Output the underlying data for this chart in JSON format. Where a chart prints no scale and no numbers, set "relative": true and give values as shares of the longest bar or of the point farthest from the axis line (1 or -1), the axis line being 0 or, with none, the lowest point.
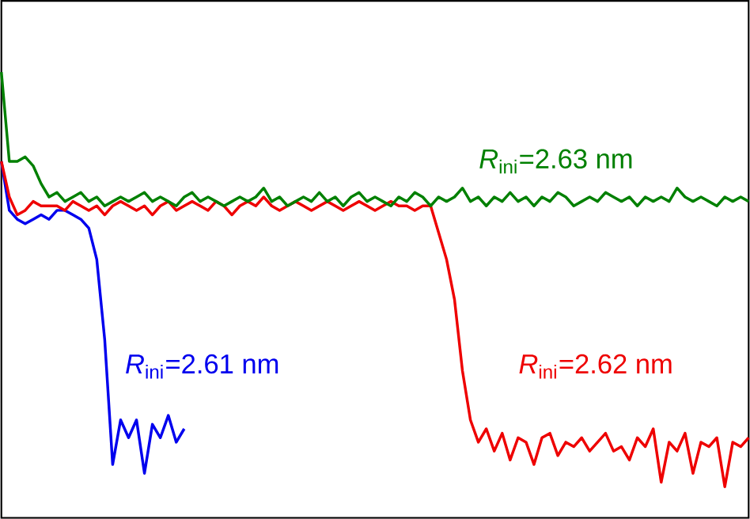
{
  "chart_data": {
    "type": "line",
    "relative": true,
    "categories": [
      null,
      null,
      null,
      null,
      null,
      null,
      null,
      null,
      null,
      null,
      null,
      null,
      null,
      null,
      null,
      null,
      null,
      null,
      null,
      null,
      null,
      null,
      null,
      null,
      null,
      null,
      null,
      null,
      null,
      null,
      null,
      null,
      null,
      null,
      null,
      null,
      null,
      null,
      null,
      null,
      null,
      null,
      null,
      null,
      null,
      null,
      null,
      null,
      null,
      null,
      null,
      null,
      null,
      null,
      null,
      null,
      null,
      null,
      null,
      null,
      null,
      null,
      null,
      null,
      null,
      null,
      null,
      null,
      null,
      null,
      null,
      null,
      null,
      null,
      null,
      null,
      null,
      null,
      null,
      null,
      null,
      null,
      null,
      null,
      null,
      null,
      null,
      null,
      null,
      null,
      null,
      null,
      null,
      null,
      null
    ],
    "series": [
      {
        "color": "#0000ee",
        "values": [
          0.8,
          0.69,
          0.67,
          0.66,
          0.67,
          0.68,
          0.67,
          0.69,
          0.69,
          0.68,
          0.67,
          0.65,
          0.58,
          0.4,
          0.12,
          0.22,
          0.18,
          0.22,
          0.1,
          0.21,
          0.18,
          0.23,
          0.17,
          0.2,
          null,
          null,
          null,
          null,
          null,
          null,
          null,
          null,
          null,
          null,
          null,
          null,
          null,
          null,
          null,
          null,
          null,
          null,
          null,
          null,
          null,
          null,
          null,
          null,
          null,
          null,
          null,
          null,
          null,
          null,
          null,
          null,
          null,
          null,
          null,
          null,
          null,
          null,
          null,
          null,
          null,
          null,
          null,
          null,
          null,
          null,
          null,
          null,
          null,
          null,
          null,
          null,
          null,
          null,
          null,
          null,
          null,
          null,
          null,
          null,
          null,
          null,
          null,
          null,
          null,
          null,
          null,
          null,
          null,
          null,
          null
        ]
      },
      {
        "color": "#ee0000",
        "values": [
          0.8,
          0.72,
          0.68,
          0.69,
          0.71,
          0.7,
          0.7,
          0.7,
          0.69,
          0.71,
          0.7,
          0.69,
          0.7,
          0.68,
          0.7,
          0.71,
          0.7,
          0.69,
          0.7,
          0.68,
          0.7,
          0.71,
          0.69,
          0.7,
          0.71,
          0.7,
          0.69,
          0.71,
          0.7,
          0.68,
          0.7,
          0.71,
          0.7,
          0.72,
          0.7,
          0.69,
          0.7,
          0.71,
          0.7,
          0.69,
          0.7,
          0.71,
          0.7,
          0.69,
          0.7,
          0.71,
          0.7,
          0.69,
          0.7,
          0.71,
          0.7,
          0.7,
          0.69,
          0.7,
          0.7,
          0.64,
          0.58,
          0.49,
          0.33,
          0.22,
          0.17,
          0.2,
          0.15,
          0.19,
          0.13,
          0.18,
          0.17,
          0.12,
          0.18,
          0.19,
          0.14,
          0.17,
          0.16,
          0.18,
          0.15,
          0.17,
          0.19,
          0.15,
          0.16,
          0.13,
          0.18,
          0.16,
          0.2,
          0.08,
          0.17,
          0.15,
          0.19,
          0.1,
          0.17,
          0.16,
          0.18,
          0.07,
          0.17,
          0.16,
          0.18
        ]
      },
      {
        "color": "#008000",
        "values": [
          1.0,
          0.8,
          0.8,
          0.81,
          0.79,
          0.75,
          0.72,
          0.73,
          0.71,
          0.72,
          0.73,
          0.71,
          0.72,
          0.7,
          0.71,
          0.72,
          0.71,
          0.72,
          0.73,
          0.71,
          0.72,
          0.71,
          0.7,
          0.72,
          0.73,
          0.71,
          0.72,
          0.71,
          0.7,
          0.71,
          0.72,
          0.71,
          0.72,
          0.74,
          0.71,
          0.72,
          0.7,
          0.71,
          0.72,
          0.71,
          0.73,
          0.71,
          0.72,
          0.7,
          0.72,
          0.73,
          0.71,
          0.72,
          0.71,
          0.7,
          0.72,
          0.71,
          0.73,
          0.72,
          0.7,
          0.72,
          0.71,
          0.72,
          0.74,
          0.71,
          0.72,
          0.7,
          0.72,
          0.71,
          0.73,
          0.71,
          0.72,
          0.7,
          0.72,
          0.71,
          0.73,
          0.72,
          0.7,
          0.71,
          0.72,
          0.71,
          0.73,
          0.72,
          0.71,
          0.72,
          0.7,
          0.72,
          0.71,
          0.72,
          0.71,
          0.74,
          0.72,
          0.71,
          0.72,
          0.71,
          0.7,
          0.72,
          0.71,
          0.72,
          0.71
        ]
      }
    ],
    "annotations": [
      "*R*$_{ini}$=2.61 nm",
      "*R*$_{ini}$=2.62 nm",
      "*R*$_{ini}$=2.63 nm"
    ]
  }
}
